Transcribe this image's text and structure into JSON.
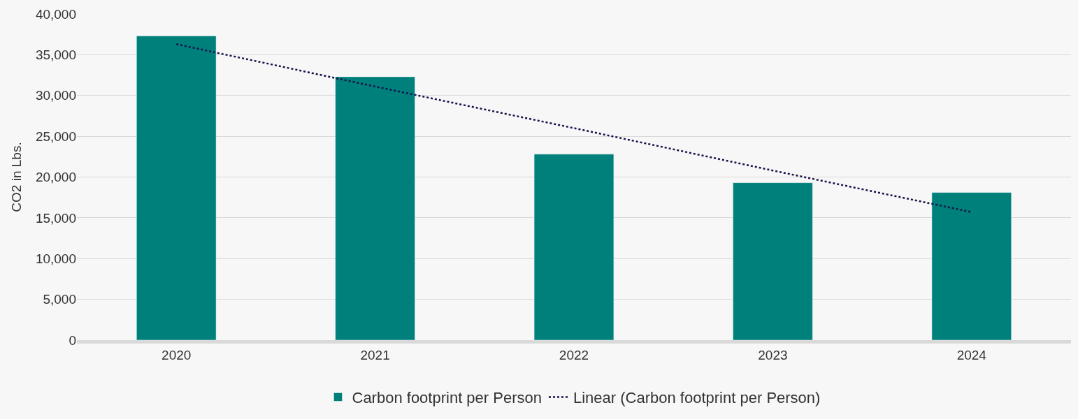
{
  "chart_data": {
    "type": "bar",
    "ylabel": "CO2 in Lbs.",
    "categories": [
      "2020",
      "2021",
      "2022",
      "2023",
      "2024"
    ],
    "series": [
      {
        "name": "Carbon footprint per Person",
        "color": "#00807a",
        "values": [
          37300,
          32300,
          22800,
          19300,
          18100
        ]
      },
      {
        "name": "Linear (Carbon footprint per Person)",
        "type": "line",
        "color": "#14144a",
        "line_style": "dotted",
        "marker": "none",
        "values": [
          36300,
          31100,
          26000,
          20800,
          15700
        ]
      }
    ],
    "ylim": [
      0,
      40000
    ],
    "yticks": [
      {
        "value": 0,
        "label": "0"
      },
      {
        "value": 5000,
        "label": "5,000"
      },
      {
        "value": 10000,
        "label": "10,000"
      },
      {
        "value": 15000,
        "label": "15,000"
      },
      {
        "value": 20000,
        "label": "20,000"
      },
      {
        "value": 25000,
        "label": "25,000"
      },
      {
        "value": 30000,
        "label": "30,000"
      },
      {
        "value": 35000,
        "label": "35,000"
      },
      {
        "value": 40000,
        "label": "40,000"
      }
    ],
    "grid": "y",
    "legend": "bottom"
  }
}
